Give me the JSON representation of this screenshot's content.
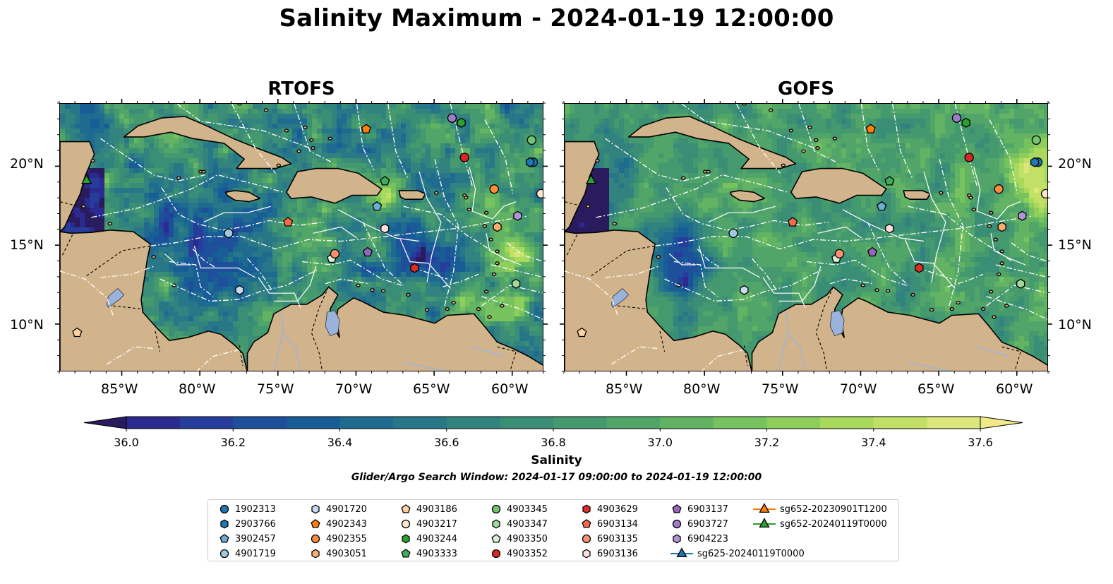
{
  "figure": {
    "title": "Salinity Maximum - 2024-01-19 12:00:00",
    "window_text": "Glider/Argo Search Window: 2024-01-17 09:00:00 to 2024-01-19 12:00:00"
  },
  "panels": [
    {
      "id": "rtofs",
      "title": "RTOFS"
    },
    {
      "id": "gofs",
      "title": "GOFS"
    }
  ],
  "map_extent": {
    "lon": [
      -89,
      -58
    ],
    "lat": [
      7,
      24
    ]
  },
  "axis_labels": {
    "lon": [
      "85°W",
      "80°W",
      "75°W",
      "70°W",
      "65°W",
      "60°W"
    ],
    "lat": [
      "20°N",
      "15°N",
      "10°N"
    ]
  },
  "colorbar": {
    "label": "Salinity",
    "ticks": [
      "36.0",
      "36.2",
      "36.4",
      "36.6",
      "36.8",
      "37.0",
      "37.2",
      "37.4",
      "37.6"
    ],
    "range": [
      35.9,
      37.7
    ],
    "step": 0.1,
    "extend": "both",
    "colors": [
      "#2a1a5e",
      "#2b2a8f",
      "#263d9b",
      "#1d4f9a",
      "#195d96",
      "#1f6b8f",
      "#287788",
      "#32827f",
      "#3a8e76",
      "#44996e",
      "#51a568",
      "#62b363",
      "#76c25e",
      "#8ecf5c",
      "#a9d95d",
      "#c3e066",
      "#dbe77a",
      "#f2e98a"
    ]
  },
  "colors": {
    "land": "#d2b48c",
    "lakes": "#9ab3dc",
    "rivers": "#9ab3dc",
    "eez_lines": "#ffffff",
    "coastline": "#000000"
  },
  "legend": {
    "items": [
      {
        "label": "1902313",
        "marker": "circle",
        "color": "#1f77b4"
      },
      {
        "label": "2903766",
        "marker": "hexagon",
        "color": "#1f77b4"
      },
      {
        "label": "3902457",
        "marker": "pentagon",
        "color": "#6baed6"
      },
      {
        "label": "4901719",
        "marker": "circle",
        "color": "#9ecae1"
      },
      {
        "label": "4901720",
        "marker": "hexagon",
        "color": "#c6dbef"
      },
      {
        "label": "4902343",
        "marker": "pentagon",
        "color": "#ff7f0e"
      },
      {
        "label": "4902355",
        "marker": "circle",
        "color": "#fd8d3c"
      },
      {
        "label": "4903051",
        "marker": "hexagon",
        "color": "#fdae6b"
      },
      {
        "label": "4903186",
        "marker": "pentagon",
        "color": "#fdd0a2"
      },
      {
        "label": "4903217",
        "marker": "circle",
        "color": "#fee6ce"
      },
      {
        "label": "4903244",
        "marker": "hexagon",
        "color": "#2ca02c"
      },
      {
        "label": "4903333",
        "marker": "pentagon",
        "color": "#41ab5d"
      },
      {
        "label": "4903345",
        "marker": "circle",
        "color": "#74c476"
      },
      {
        "label": "4903347",
        "marker": "hexagon",
        "color": "#a1d99b"
      },
      {
        "label": "4903350",
        "marker": "pentagon",
        "color": "#d9f0d3"
      },
      {
        "label": "4903352",
        "marker": "circle",
        "color": "#d62728"
      },
      {
        "label": "4903629",
        "marker": "hexagon",
        "color": "#de2d26"
      },
      {
        "label": "6903134",
        "marker": "pentagon",
        "color": "#fb6a4a"
      },
      {
        "label": "6903135",
        "marker": "circle",
        "color": "#fc9272"
      },
      {
        "label": "6903136",
        "marker": "hexagon",
        "color": "#fde0dd"
      },
      {
        "label": "6903137",
        "marker": "pentagon",
        "color": "#9467bd"
      },
      {
        "label": "6903727",
        "marker": "circle",
        "color": "#9e7cc8"
      },
      {
        "label": "6904223",
        "marker": "hexagon",
        "color": "#b394d8"
      },
      {
        "label": "sg625-20240119T0000",
        "marker": "triangle-line",
        "color": "#1f77b4"
      },
      {
        "label": "sg652-20230901T1200",
        "marker": "triangle-line",
        "color": "#ff7f0e"
      },
      {
        "label": "sg652-20240119T0000",
        "marker": "triangle-line",
        "color": "#2ca02c"
      }
    ]
  },
  "observations": [
    {
      "id": "1902313",
      "lon": -58.7,
      "lat": 20.3
    },
    {
      "id": "2903766",
      "lon": -58.9,
      "lat": 20.3
    },
    {
      "id": "3902457",
      "lon": -68.7,
      "lat": 17.5
    },
    {
      "id": "4901719",
      "lon": -78.2,
      "lat": 15.8
    },
    {
      "id": "4901720",
      "lon": -77.5,
      "lat": 12.2
    },
    {
      "id": "4902343",
      "lon": -69.4,
      "lat": 22.4
    },
    {
      "id": "4902355",
      "lon": -61.2,
      "lat": 18.6
    },
    {
      "id": "4903051",
      "lon": -61.0,
      "lat": 16.2
    },
    {
      "id": "4903186",
      "lon": -87.9,
      "lat": 9.5
    },
    {
      "id": "4903217",
      "lon": -58.2,
      "lat": 18.3
    },
    {
      "id": "4903244",
      "lon": -63.3,
      "lat": 22.8
    },
    {
      "id": "4903333",
      "lon": -68.2,
      "lat": 19.1
    },
    {
      "id": "4903345",
      "lon": -58.8,
      "lat": 21.7
    },
    {
      "id": "4903347",
      "lon": -59.8,
      "lat": 12.6
    },
    {
      "id": "4903350",
      "lon": -71.6,
      "lat": 14.2
    },
    {
      "id": "4903352",
      "lon": -63.1,
      "lat": 20.6
    },
    {
      "id": "4903629",
      "lon": -66.3,
      "lat": 13.6
    },
    {
      "id": "6903134",
      "lon": -74.4,
      "lat": 16.5
    },
    {
      "id": "6903135",
      "lon": -71.4,
      "lat": 14.5
    },
    {
      "id": "6903136",
      "lon": -68.2,
      "lat": 16.1
    },
    {
      "id": "6903137",
      "lon": -69.3,
      "lat": 14.6
    },
    {
      "id": "6903727",
      "lon": -63.9,
      "lat": 23.1
    },
    {
      "id": "6904223",
      "lon": -59.7,
      "lat": 16.9
    },
    {
      "id": "sg652-20240119T0000",
      "lon": -87.3,
      "lat": 19.2
    }
  ]
}
